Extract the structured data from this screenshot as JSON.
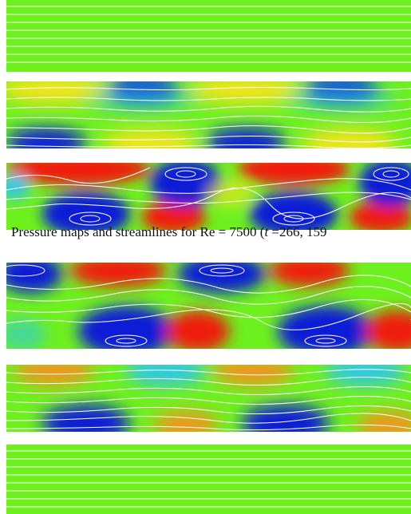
{
  "caption": {
    "prefix": "Pressure maps and streamlines for ",
    "re_symbol": "Re",
    "equals": " = ",
    "re_value": "7500",
    "open": " (",
    "t_symbol": "t",
    "t_values": " =266, 159"
  },
  "panel_groups": [
    {
      "name": "upper-group",
      "panels": [
        "uniform-flow",
        "weak-wave",
        "strong-vortices"
      ]
    },
    {
      "name": "lower-group",
      "panels": [
        "strong-vortices",
        "weak-wave",
        "uniform-flow"
      ]
    }
  ],
  "colors": {
    "low_pressure": "#0a1ed6",
    "neutral": "#6ef01e",
    "high_pressure": "#f01e0a",
    "streamline": "#ffffff"
  }
}
